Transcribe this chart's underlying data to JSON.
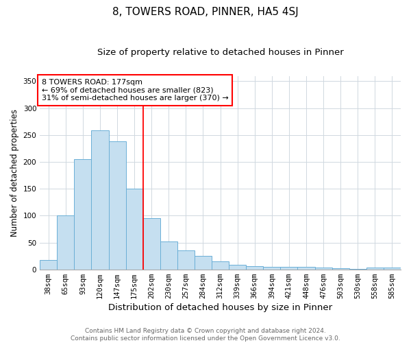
{
  "title1": "8, TOWERS ROAD, PINNER, HA5 4SJ",
  "title2": "Size of property relative to detached houses in Pinner",
  "xlabel": "Distribution of detached houses by size in Pinner",
  "ylabel": "Number of detached properties",
  "bar_labels": [
    "38sqm",
    "65sqm",
    "93sqm",
    "120sqm",
    "147sqm",
    "175sqm",
    "202sqm",
    "230sqm",
    "257sqm",
    "284sqm",
    "312sqm",
    "339sqm",
    "366sqm",
    "394sqm",
    "421sqm",
    "448sqm",
    "476sqm",
    "503sqm",
    "530sqm",
    "558sqm",
    "585sqm"
  ],
  "bar_heights": [
    18,
    100,
    205,
    258,
    238,
    150,
    95,
    52,
    35,
    25,
    15,
    8,
    6,
    5,
    5,
    5,
    3,
    2,
    1,
    3,
    3
  ],
  "bar_color": "#c5dff0",
  "bar_edge_color": "#6aafd6",
  "vline_index": 5,
  "vline_color": "red",
  "annotation_text": "8 TOWERS ROAD: 177sqm\n← 69% of detached houses are smaller (823)\n31% of semi-detached houses are larger (370) →",
  "annotation_box_color": "white",
  "annotation_box_edge_color": "red",
  "ylim": [
    0,
    360
  ],
  "yticks": [
    0,
    50,
    100,
    150,
    200,
    250,
    300,
    350
  ],
  "background_color": "white",
  "grid_color": "#d0d8e0",
  "footer_line1": "Contains HM Land Registry data © Crown copyright and database right 2024.",
  "footer_line2": "Contains public sector information licensed under the Open Government Licence v3.0.",
  "title1_fontsize": 11,
  "title2_fontsize": 9.5,
  "xlabel_fontsize": 9.5,
  "ylabel_fontsize": 8.5,
  "tick_fontsize": 7.5,
  "footer_fontsize": 6.5,
  "annotation_fontsize": 8
}
